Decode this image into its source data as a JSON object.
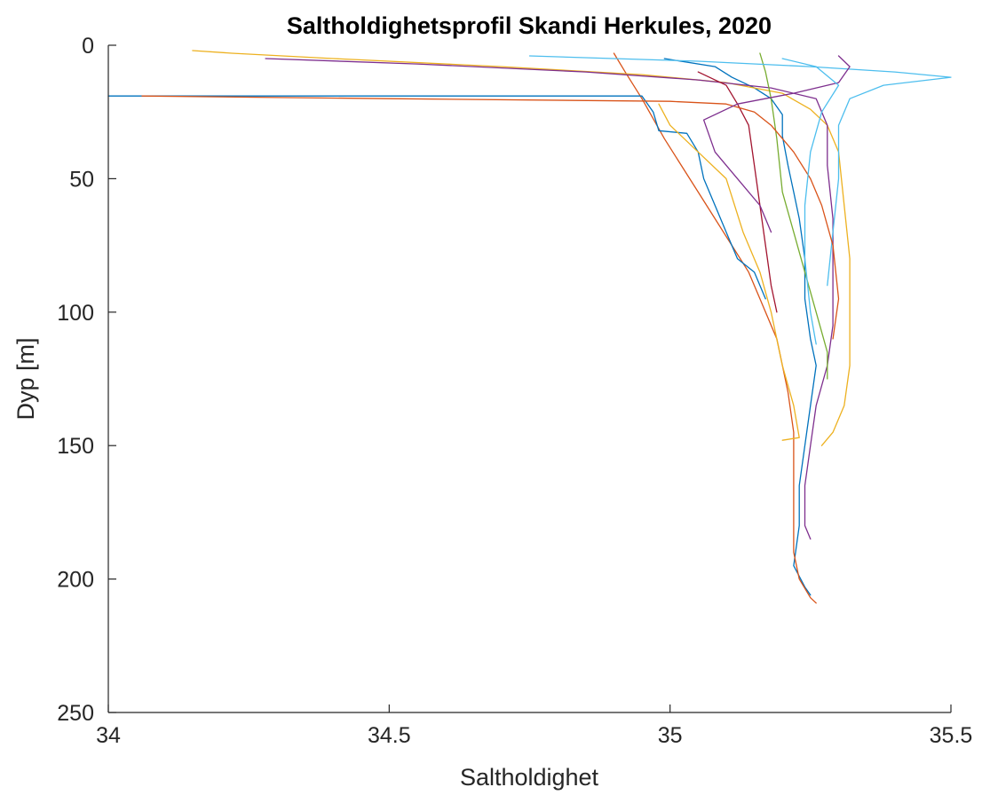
{
  "chart_data": {
    "type": "line",
    "title": "Saltholdighetsprofil Skandi Herkules, 2020",
    "xlabel": "Saltholdighet",
    "ylabel": "Dyp [m]",
    "xlim": [
      34,
      35.5
    ],
    "ylim": [
      0,
      250
    ],
    "y_reversed": true,
    "grid": false,
    "legend": "none",
    "x_ticks": [
      "34",
      "34.5",
      "35",
      "35.5"
    ],
    "y_ticks": [
      "0",
      "50",
      "100",
      "150",
      "200",
      "250"
    ],
    "axis_color": "#262626",
    "series": [
      {
        "color": "#0072BD",
        "points": [
          [
            34.99,
            5
          ],
          [
            35.08,
            8
          ],
          [
            35.11,
            12
          ],
          [
            35.15,
            16
          ],
          [
            35.18,
            20
          ],
          [
            35.2,
            26
          ],
          [
            35.2,
            34
          ],
          [
            35.21,
            45
          ],
          [
            35.22,
            55
          ],
          [
            35.23,
            65
          ],
          [
            35.24,
            80
          ],
          [
            35.24,
            95
          ],
          [
            35.25,
            110
          ],
          [
            35.26,
            120
          ],
          [
            35.25,
            135
          ],
          [
            35.24,
            150
          ],
          [
            35.23,
            165
          ],
          [
            35.23,
            180
          ],
          [
            35.22,
            195
          ],
          [
            35.24,
            203
          ],
          [
            35.25,
            206
          ]
        ]
      },
      {
        "color": "#D95319",
        "points": [
          [
            34.9,
            3
          ],
          [
            34.92,
            10
          ],
          [
            34.95,
            20
          ],
          [
            34.99,
            35
          ],
          [
            35.02,
            45
          ],
          [
            35.05,
            55
          ],
          [
            35.08,
            65
          ],
          [
            35.11,
            75
          ],
          [
            35.14,
            85
          ],
          [
            35.16,
            95
          ],
          [
            35.19,
            110
          ],
          [
            35.21,
            130
          ],
          [
            35.22,
            145
          ],
          [
            35.22,
            160
          ],
          [
            35.22,
            175
          ],
          [
            35.22,
            190
          ],
          [
            35.23,
            200
          ],
          [
            35.25,
            207
          ],
          [
            35.26,
            209
          ]
        ]
      },
      {
        "color": "#EDB120",
        "points": [
          [
            34.15,
            2
          ],
          [
            34.22,
            3
          ],
          [
            34.4,
            5
          ],
          [
            34.7,
            8
          ],
          [
            34.95,
            11
          ],
          [
            35.1,
            14
          ],
          [
            35.2,
            18
          ],
          [
            35.25,
            24
          ],
          [
            35.28,
            30
          ],
          [
            35.3,
            40
          ],
          [
            35.31,
            60
          ],
          [
            35.32,
            80
          ],
          [
            35.32,
            100
          ],
          [
            35.32,
            120
          ],
          [
            35.31,
            135
          ],
          [
            35.29,
            145
          ],
          [
            35.27,
            150
          ]
        ]
      },
      {
        "color": "#7E2F8E",
        "points": [
          [
            34.28,
            5
          ],
          [
            34.55,
            7
          ],
          [
            34.85,
            10
          ],
          [
            35.05,
            13
          ],
          [
            35.18,
            16
          ],
          [
            35.26,
            20
          ],
          [
            35.28,
            30
          ],
          [
            35.28,
            45
          ],
          [
            35.29,
            65
          ],
          [
            35.29,
            85
          ],
          [
            35.29,
            105
          ],
          [
            35.28,
            120
          ],
          [
            35.26,
            135
          ],
          [
            35.25,
            150
          ],
          [
            35.24,
            165
          ],
          [
            35.24,
            180
          ],
          [
            35.25,
            185
          ]
        ]
      },
      {
        "color": "#77AC30",
        "points": [
          [
            35.16,
            3
          ],
          [
            35.17,
            10
          ],
          [
            35.18,
            20
          ],
          [
            35.19,
            35
          ],
          [
            35.2,
            55
          ],
          [
            35.22,
            70
          ],
          [
            35.24,
            85
          ],
          [
            35.26,
            100
          ],
          [
            35.28,
            115
          ],
          [
            35.28,
            125
          ]
        ]
      },
      {
        "color": "#4DBEEE",
        "points": [
          [
            34.75,
            4
          ],
          [
            35.05,
            6
          ],
          [
            35.25,
            8
          ],
          [
            35.4,
            10
          ],
          [
            35.5,
            12
          ],
          [
            35.38,
            15
          ],
          [
            35.32,
            20
          ],
          [
            35.3,
            30
          ],
          [
            35.3,
            50
          ],
          [
            35.29,
            70
          ],
          [
            35.28,
            90
          ]
        ]
      },
      {
        "color": "#A2142F",
        "points": [
          [
            35.05,
            10
          ],
          [
            35.1,
            15
          ],
          [
            35.12,
            22
          ],
          [
            35.14,
            30
          ],
          [
            35.15,
            45
          ],
          [
            35.16,
            60
          ],
          [
            35.17,
            75
          ],
          [
            35.18,
            90
          ],
          [
            35.19,
            100
          ]
        ]
      },
      {
        "color": "#0072BD",
        "points": [
          [
            34.0,
            19
          ],
          [
            34.5,
            19
          ],
          [
            34.95,
            19
          ],
          [
            34.97,
            25
          ],
          [
            34.98,
            32
          ],
          [
            35.03,
            33
          ],
          [
            35.05,
            40
          ],
          [
            35.06,
            50
          ],
          [
            35.08,
            60
          ],
          [
            35.1,
            70
          ],
          [
            35.12,
            80
          ],
          [
            35.15,
            85
          ],
          [
            35.17,
            95
          ]
        ]
      },
      {
        "color": "#D95319",
        "points": [
          [
            34.06,
            19
          ],
          [
            34.5,
            20
          ],
          [
            35.0,
            21
          ],
          [
            35.1,
            22
          ],
          [
            35.15,
            25
          ],
          [
            35.18,
            30
          ],
          [
            35.22,
            40
          ],
          [
            35.25,
            50
          ],
          [
            35.27,
            60
          ],
          [
            35.29,
            75
          ],
          [
            35.3,
            95
          ],
          [
            35.29,
            110
          ]
        ]
      },
      {
        "color": "#EDB120",
        "points": [
          [
            34.98,
            22
          ],
          [
            35.0,
            30
          ],
          [
            35.05,
            40
          ],
          [
            35.1,
            50
          ],
          [
            35.13,
            70
          ],
          [
            35.16,
            85
          ],
          [
            35.18,
            100
          ],
          [
            35.2,
            120
          ],
          [
            35.22,
            135
          ],
          [
            35.23,
            147
          ],
          [
            35.2,
            148
          ]
        ]
      },
      {
        "color": "#7E2F8E",
        "points": [
          [
            35.3,
            4
          ],
          [
            35.32,
            8
          ],
          [
            35.3,
            14
          ],
          [
            35.22,
            18
          ],
          [
            35.12,
            22
          ],
          [
            35.06,
            28
          ],
          [
            35.08,
            40
          ],
          [
            35.12,
            50
          ],
          [
            35.16,
            60
          ],
          [
            35.18,
            70
          ]
        ]
      },
      {
        "color": "#4DBEEE",
        "points": [
          [
            35.2,
            5
          ],
          [
            35.26,
            8
          ],
          [
            35.3,
            15
          ],
          [
            35.27,
            25
          ],
          [
            35.25,
            40
          ],
          [
            35.24,
            60
          ],
          [
            35.24,
            80
          ],
          [
            35.25,
            100
          ],
          [
            35.26,
            112
          ]
        ]
      }
    ]
  }
}
